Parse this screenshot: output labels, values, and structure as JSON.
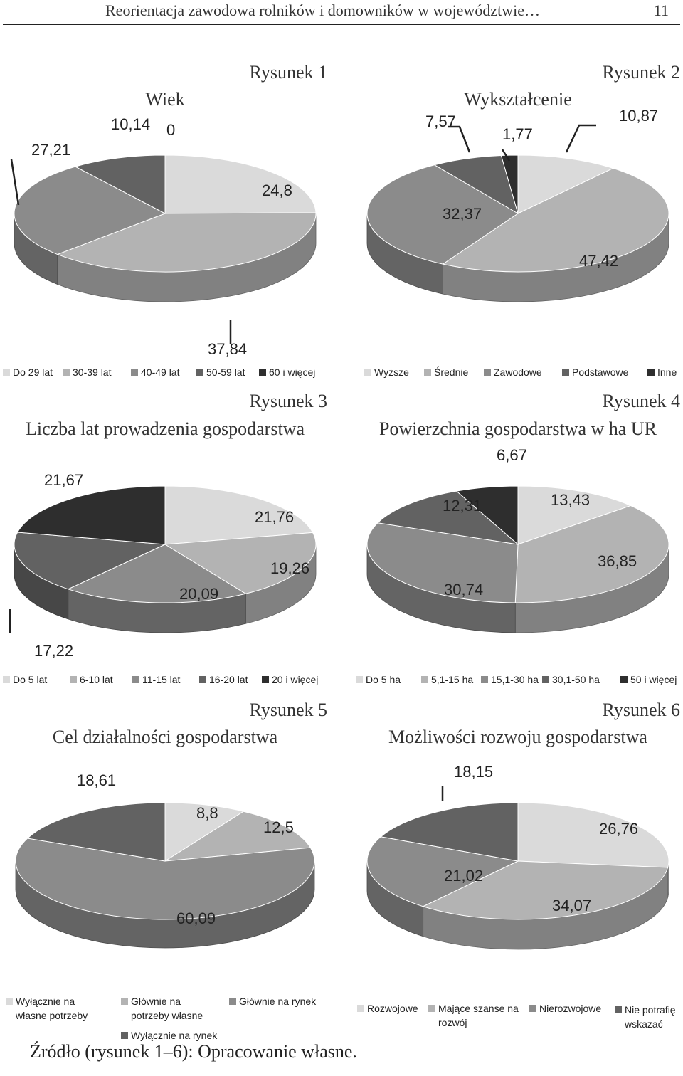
{
  "header": {
    "title": "Reorientacja zawodowa rolników i domowników w województwie…",
    "page": "11"
  },
  "source": "Źródło (rysunek 1–6): Opracowanie własne.",
  "chart_data": [
    {
      "type": "pie",
      "figure": "Rysunek 1",
      "title": "Wiek",
      "categories": [
        "Do 29 lat",
        "30-39 lat",
        "40-49 lat",
        "50-59 lat",
        "60 i więcej"
      ],
      "values": [
        24.8,
        37.84,
        27.21,
        10.14,
        0
      ],
      "labels": [
        "24,8",
        "37,84",
        "27,21",
        "10,14",
        "0"
      ],
      "colors": [
        "#dadada",
        "#b3b3b3",
        "#8b8b8b",
        "#626262",
        "#2e2e2e"
      ],
      "legend": "bottom"
    },
    {
      "type": "pie",
      "figure": "Rysunek 2",
      "title": "Wykształcenie",
      "categories": [
        "Wyższe",
        "Średnie",
        "Zawodowe",
        "Podstawowe",
        "Inne"
      ],
      "values": [
        10.87,
        47.42,
        32.37,
        7.57,
        1.77
      ],
      "labels": [
        "10,87",
        "47,42",
        "32,37",
        "7,57",
        "1,77"
      ],
      "colors": [
        "#dadada",
        "#b3b3b3",
        "#8b8b8b",
        "#626262",
        "#2e2e2e"
      ],
      "legend": "bottom"
    },
    {
      "type": "pie",
      "figure": "Rysunek 3",
      "title": "Liczba lat prowadzenia gospodarstwa",
      "categories": [
        "Do 5 lat",
        "6-10 lat",
        "11-15 lat",
        "16-20 lat",
        "20 i więcej"
      ],
      "values": [
        21.76,
        19.26,
        20.09,
        17.22,
        21.67
      ],
      "labels": [
        "21,76",
        "19,26",
        "20,09",
        "17,22",
        "21,67"
      ],
      "colors": [
        "#dadada",
        "#b3b3b3",
        "#8b8b8b",
        "#626262",
        "#2e2e2e"
      ],
      "legend": "bottom"
    },
    {
      "type": "pie",
      "figure": "Rysunek 4",
      "title": "Powierzchnia gospodarstwa w ha UR",
      "categories": [
        "Do 5 ha",
        "5,1-15 ha",
        "15,1-30 ha",
        "30,1-50 ha",
        "50 i więcej"
      ],
      "values": [
        13.43,
        36.85,
        30.74,
        12.31,
        6.67
      ],
      "labels": [
        "13,43",
        "36,85",
        "30,74",
        "12,31",
        "6,67"
      ],
      "colors": [
        "#dadada",
        "#b3b3b3",
        "#8b8b8b",
        "#626262",
        "#2e2e2e"
      ],
      "legend": "bottom"
    },
    {
      "type": "pie",
      "figure": "Rysunek 5",
      "title": "Cel działalności gospodarstwa",
      "categories": [
        "Wyłącznie na własne potrzeby",
        "Głównie na potrzeby własne",
        "Głównie na rynek",
        "Wyłącznie na rynek"
      ],
      "legend_lines": [
        [
          "Wyłącznie na",
          "własne potrzeby"
        ],
        [
          "Głównie na",
          "potrzeby własne"
        ],
        [
          "Głównie na rynek"
        ],
        [
          "Wyłącznie na rynek"
        ]
      ],
      "values": [
        8.8,
        12.5,
        60.09,
        18.61
      ],
      "labels": [
        "8,8",
        "12,5",
        "60,09",
        "18,61"
      ],
      "colors": [
        "#dadada",
        "#b3b3b3",
        "#8b8b8b",
        "#626262"
      ],
      "legend": "bottom"
    },
    {
      "type": "pie",
      "figure": "Rysunek 6",
      "title": "Możliwości rozwoju gospodarstwa",
      "categories": [
        "Rozwojowe",
        "Mające szanse na rozwój",
        "Nierozwojowe",
        "Nie potrafię wskazać"
      ],
      "legend_lines": [
        [
          "Rozwojowe"
        ],
        [
          "Mające szanse na",
          "rozwój"
        ],
        [
          "Nierozwojowe"
        ],
        [
          "Nie potrafię",
          "wskazać"
        ]
      ],
      "values": [
        26.76,
        34.07,
        21.02,
        18.15
      ],
      "labels": [
        "26,76",
        "34,07",
        "21,02",
        "18,15"
      ],
      "colors": [
        "#dadada",
        "#b3b3b3",
        "#8b8b8b",
        "#626262"
      ],
      "legend": "bottom"
    }
  ]
}
